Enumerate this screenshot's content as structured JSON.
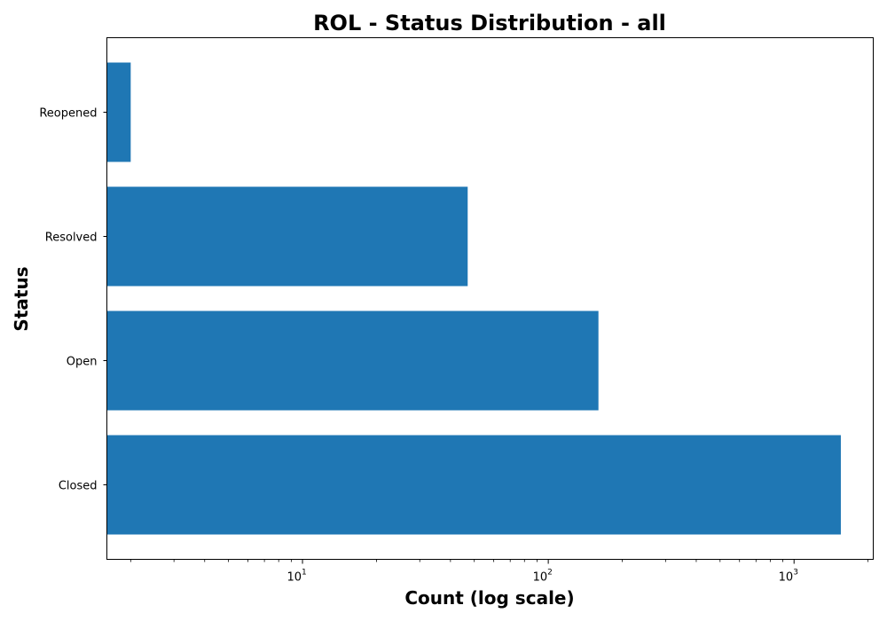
{
  "chart_data": {
    "type": "bar",
    "orientation": "horizontal",
    "title": "ROL - Status Distribution - all",
    "xlabel": "Count (log scale)",
    "ylabel": "Status",
    "x_scale": "log",
    "xlim": [
      1.6,
      2100
    ],
    "categories": [
      "Closed",
      "Open",
      "Resolved",
      "Reopened"
    ],
    "values": [
      1550,
      160,
      47,
      2
    ],
    "x_major_ticks": [
      10,
      100,
      1000
    ],
    "x_major_tick_labels": [
      {
        "base": "10",
        "exp": "1"
      },
      {
        "base": "10",
        "exp": "2"
      },
      {
        "base": "10",
        "exp": "3"
      }
    ],
    "bar_color": "#1f77b4",
    "grid": false,
    "legend": "none"
  }
}
